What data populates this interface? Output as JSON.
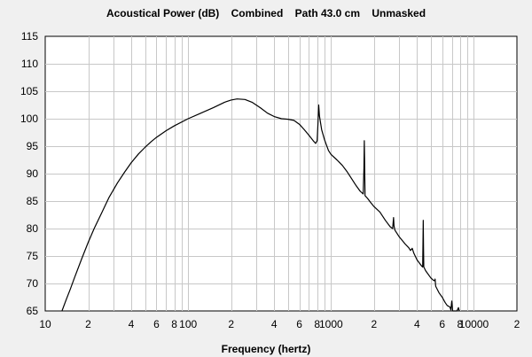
{
  "chart_data": {
    "type": "line",
    "title": "Acoustical Power (dB)    Combined    Path 43.0 cm    Unmasked",
    "xlabel": "Frequency (hertz)",
    "ylabel": "",
    "x_scale": "log",
    "xlim": [
      10,
      20000
    ],
    "ylim": [
      65,
      115
    ],
    "grid": true,
    "legend": "none",
    "x_ticks": [
      {
        "value": 10,
        "label": "10"
      },
      {
        "value": 20,
        "label": "2"
      },
      {
        "value": 40,
        "label": "4"
      },
      {
        "value": 60,
        "label": "6"
      },
      {
        "value": 80,
        "label": "8"
      },
      {
        "value": 100,
        "label": "100"
      },
      {
        "value": 200,
        "label": "2"
      },
      {
        "value": 400,
        "label": "4"
      },
      {
        "value": 600,
        "label": "6"
      },
      {
        "value": 800,
        "label": "8"
      },
      {
        "value": 1000,
        "label": "1000"
      },
      {
        "value": 2000,
        "label": "2"
      },
      {
        "value": 4000,
        "label": "4"
      },
      {
        "value": 6000,
        "label": "6"
      },
      {
        "value": 8000,
        "label": "8"
      },
      {
        "value": 10000,
        "label": "10000"
      },
      {
        "value": 20000,
        "label": "2"
      }
    ],
    "y_ticks": [
      65,
      70,
      75,
      80,
      85,
      90,
      95,
      100,
      105,
      110,
      115
    ],
    "colors": {
      "line": "#000000",
      "plot_bg": "#ffffff",
      "grid": "#c8c8c8",
      "page_bg": "#f0f0f0"
    },
    "series": [
      {
        "points": [
          [
            13.1,
            65
          ],
          [
            14,
            67
          ],
          [
            15,
            69
          ],
          [
            16,
            71
          ],
          [
            18,
            74.5
          ],
          [
            20,
            77.5
          ],
          [
            22,
            80
          ],
          [
            25,
            83
          ],
          [
            28,
            85.7
          ],
          [
            32,
            88.3
          ],
          [
            36,
            90.3
          ],
          [
            40,
            92
          ],
          [
            45,
            93.6
          ],
          [
            50,
            94.8
          ],
          [
            55,
            95.8
          ],
          [
            60,
            96.6
          ],
          [
            70,
            97.8
          ],
          [
            80,
            98.7
          ],
          [
            100,
            100
          ],
          [
            120,
            100.9
          ],
          [
            150,
            102
          ],
          [
            180,
            103
          ],
          [
            200,
            103.4
          ],
          [
            220,
            103.6
          ],
          [
            250,
            103.5
          ],
          [
            280,
            103
          ],
          [
            320,
            102
          ],
          [
            360,
            101
          ],
          [
            400,
            100.4
          ],
          [
            450,
            100
          ],
          [
            500,
            99.9
          ],
          [
            550,
            99.7
          ],
          [
            600,
            99
          ],
          [
            650,
            98
          ],
          [
            700,
            97
          ],
          [
            750,
            96
          ],
          [
            780,
            95.5
          ],
          [
            800,
            96
          ],
          [
            810,
            99
          ],
          [
            820,
            102.5
          ],
          [
            830,
            100.5
          ],
          [
            860,
            98
          ],
          [
            900,
            96.2
          ],
          [
            960,
            94.2
          ],
          [
            1000,
            93.5
          ],
          [
            1100,
            92.5
          ],
          [
            1200,
            91.5
          ],
          [
            1300,
            90.3
          ],
          [
            1400,
            89
          ],
          [
            1500,
            87.8
          ],
          [
            1600,
            86.8
          ],
          [
            1680,
            86.3
          ],
          [
            1700,
            91
          ],
          [
            1710,
            96
          ],
          [
            1720,
            91.5
          ],
          [
            1730,
            86
          ],
          [
            1800,
            85.5
          ],
          [
            1900,
            84.7
          ],
          [
            2000,
            84
          ],
          [
            2200,
            83
          ],
          [
            2400,
            81.5
          ],
          [
            2600,
            80.3
          ],
          [
            2700,
            80
          ],
          [
            2740,
            82
          ],
          [
            2760,
            80.5
          ],
          [
            2800,
            79.7
          ],
          [
            3000,
            78.5
          ],
          [
            3300,
            77.2
          ],
          [
            3500,
            76.5
          ],
          [
            3600,
            76
          ],
          [
            3700,
            76.4
          ],
          [
            3800,
            75.5
          ],
          [
            4000,
            74.3
          ],
          [
            4300,
            73.2
          ],
          [
            4380,
            73
          ],
          [
            4400,
            77
          ],
          [
            4420,
            81.5
          ],
          [
            4440,
            76.5
          ],
          [
            4460,
            73
          ],
          [
            4600,
            72.3
          ],
          [
            5000,
            71
          ],
          [
            5200,
            70.6
          ],
          [
            5300,
            70.5
          ],
          [
            5350,
            70.8
          ],
          [
            5400,
            69.5
          ],
          [
            5700,
            68.3
          ],
          [
            6000,
            67.5
          ],
          [
            6300,
            66.5
          ],
          [
            6500,
            66
          ],
          [
            6800,
            65.7
          ],
          [
            6900,
            65.2
          ],
          [
            7000,
            66.8
          ],
          [
            7100,
            65
          ],
          [
            7300,
            65
          ],
          [
            7600,
            65
          ],
          [
            7800,
            65.6
          ],
          [
            7900,
            65
          ]
        ]
      }
    ]
  }
}
